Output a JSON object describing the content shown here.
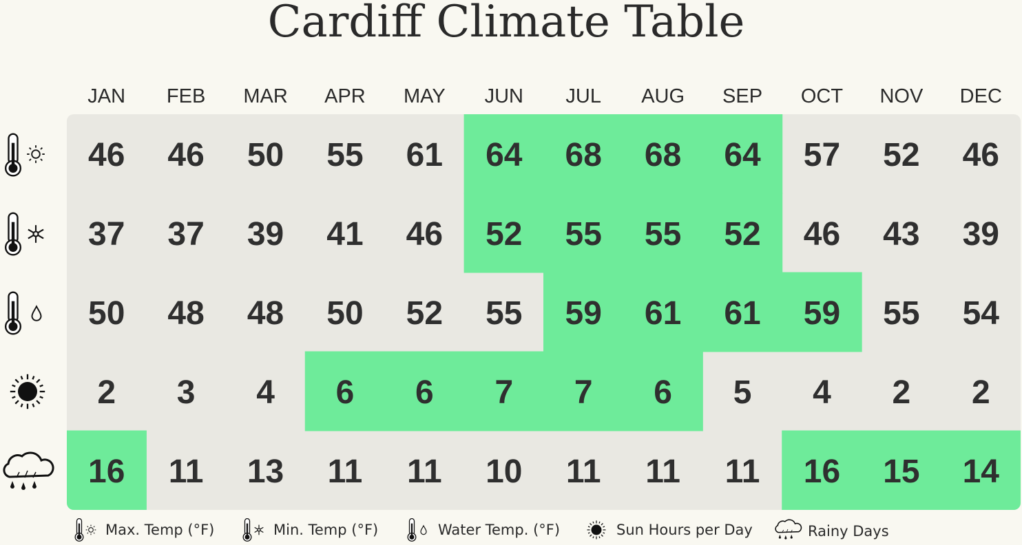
{
  "title": "Cardiff Climate Table",
  "table": {
    "columns": [
      "JAN",
      "FEB",
      "MAR",
      "APR",
      "MAY",
      "JUN",
      "JUL",
      "AUG",
      "SEP",
      "OCT",
      "NOV",
      "DEC"
    ],
    "rows": [
      {
        "values": [
          46,
          46,
          50,
          55,
          61,
          64,
          68,
          68,
          64,
          57,
          52,
          46
        ],
        "highlighted": [
          false,
          false,
          false,
          false,
          false,
          true,
          true,
          true,
          true,
          false,
          false,
          false
        ]
      },
      {
        "values": [
          37,
          37,
          39,
          41,
          46,
          52,
          55,
          55,
          52,
          46,
          43,
          39
        ],
        "highlighted": [
          false,
          false,
          false,
          false,
          false,
          true,
          true,
          true,
          true,
          false,
          false,
          false
        ]
      },
      {
        "values": [
          50,
          48,
          48,
          50,
          52,
          55,
          59,
          61,
          61,
          59,
          55,
          54
        ],
        "highlighted": [
          false,
          false,
          false,
          false,
          false,
          false,
          true,
          true,
          true,
          true,
          false,
          false
        ]
      },
      {
        "values": [
          2,
          3,
          4,
          6,
          6,
          7,
          7,
          6,
          5,
          4,
          2,
          2
        ],
        "highlighted": [
          false,
          false,
          false,
          true,
          true,
          true,
          true,
          true,
          false,
          false,
          false,
          false
        ]
      },
      {
        "values": [
          16,
          11,
          13,
          11,
          11,
          10,
          11,
          11,
          11,
          16,
          15,
          14
        ],
        "highlighted": [
          true,
          false,
          false,
          false,
          false,
          false,
          false,
          false,
          false,
          true,
          true,
          true
        ]
      }
    ]
  },
  "legend": [
    "Max. Temp (°F)",
    "Min. Temp (°F)",
    "Water Temp. (°F)",
    "Sun Hours per Day",
    "Rainy Days"
  ]
}
